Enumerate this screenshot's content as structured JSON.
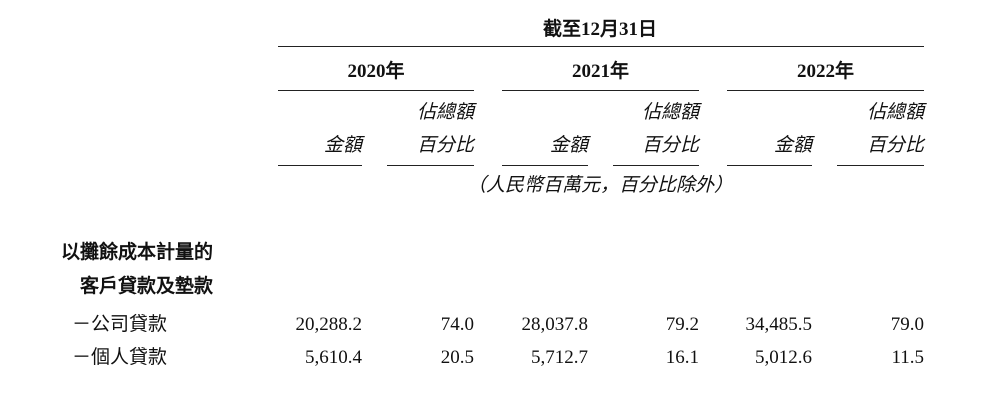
{
  "header": {
    "title": "截至12月31日",
    "year_groups": [
      {
        "year": "2020年",
        "amount": "金額",
        "share_lines": [
          "佔總額",
          "百分比"
        ]
      },
      {
        "year": "2021年",
        "amount": "金額",
        "share_lines": [
          "佔總額",
          "百分比"
        ]
      },
      {
        "year": "2022年",
        "amount": "金額",
        "share_lines": [
          "佔總額",
          "百分比"
        ]
      }
    ],
    "unit_note": "（人民幣百萬元，百分比除外）"
  },
  "section": {
    "label_lines": [
      "以攤餘成本計量的",
      "客戶貸款及墊款"
    ],
    "rows": [
      {
        "label": "－公司貸款",
        "cells": [
          "20,288.2",
          "74.0",
          "28,037.8",
          "79.2",
          "34,485.5",
          "79.0"
        ]
      },
      {
        "label": "－個人貸款",
        "cells": [
          "5,610.4",
          "20.5",
          "5,712.7",
          "16.1",
          "5,012.6",
          "11.5"
        ]
      }
    ]
  }
}
